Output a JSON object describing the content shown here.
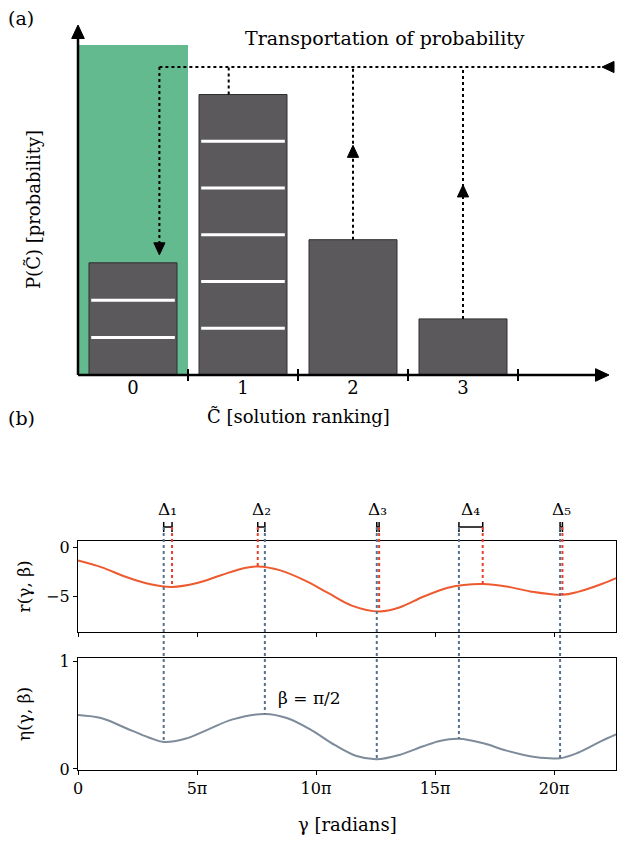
{
  "chart_data": [
    {
      "type": "bar",
      "panel": "(a)",
      "categories": [
        "0",
        "1",
        "2",
        "3"
      ],
      "values": [
        0.34,
        0.85,
        0.41,
        0.17
      ],
      "pieces": [
        3,
        6,
        1,
        1
      ],
      "color": "#5b595c",
      "ylim": [
        0,
        1
      ],
      "yticks": [],
      "tick_labels": "x",
      "grid": false,
      "xlabel": "C̃ [solution ranking]",
      "ylabel": "P(C̃) [probability]",
      "annotation": "Transportation of probability"
    },
    {
      "type": "line",
      "panel": "(b)",
      "x": [
        0,
        3.14,
        6.28,
        9.42,
        12.41,
        15.71,
        18.85,
        21.99,
        23.72,
        26.7,
        29.85,
        32.99,
        36.13,
        39.74,
        42.41,
        45.55,
        48.69,
        50.89,
        53.41,
        56.55,
        59.69,
        63.93,
        65.97,
        69.12,
        71.0
      ],
      "values": [
        -1.3,
        -2.0,
        -2.95,
        -3.7,
        -4.0,
        -3.6,
        -2.8,
        -2.05,
        -1.9,
        -2.3,
        -3.3,
        -4.6,
        -5.9,
        -6.5,
        -6.1,
        -5.0,
        -4.1,
        -3.8,
        -3.7,
        -3.95,
        -4.45,
        -4.8,
        -4.5,
        -3.7,
        -3.1
      ],
      "color": "#ee5a30",
      "line_style": "solid",
      "xlim": [
        0,
        71.0
      ],
      "xticks": [
        0,
        {
          "value": 15.708,
          "label": "5π"
        },
        {
          "value": 31.416,
          "label": "10π"
        },
        {
          "value": 47.124,
          "label": "15π"
        },
        {
          "value": 62.832,
          "label": "20π"
        }
      ],
      "ylim": [
        -8.6,
        0.7
      ],
      "yticks": [
        {
          "value": -5,
          "label": "−5"
        },
        0
      ],
      "tick_labels": "y",
      "grid": false,
      "ylabel": "r(γ, β)",
      "deltas": [
        {
          "label": "Δ₁",
          "eta_x": 11.31,
          "r_x": 12.41
        },
        {
          "label": "Δ₂",
          "eta_x": 24.66,
          "r_x": 23.72
        },
        {
          "label": "Δ₃",
          "eta_x": 39.43,
          "r_x": 39.74
        },
        {
          "label": "Δ₄",
          "eta_x": 50.27,
          "r_x": 53.41
        },
        {
          "label": "Δ₅",
          "eta_x": 63.62,
          "r_x": 63.93
        }
      ]
    },
    {
      "type": "line",
      "x": [
        0,
        3.14,
        6.28,
        9.42,
        11.31,
        14.14,
        17.28,
        20.42,
        24.66,
        27.65,
        30.79,
        33.93,
        36.76,
        39.43,
        42.41,
        45.55,
        47.75,
        50.27,
        53.41,
        56.55,
        60.32,
        63.62,
        65.97,
        69.12,
        71.0
      ],
      "values": [
        0.5,
        0.47,
        0.38,
        0.29,
        0.25,
        0.28,
        0.37,
        0.46,
        0.51,
        0.47,
        0.36,
        0.22,
        0.12,
        0.09,
        0.13,
        0.21,
        0.26,
        0.28,
        0.24,
        0.17,
        0.11,
        0.1,
        0.15,
        0.26,
        0.32
      ],
      "color": "#7d8b9b",
      "line_style": "solid",
      "xlim": [
        0,
        71.0
      ],
      "xticks": [
        0,
        {
          "value": 15.708,
          "label": "5π"
        },
        {
          "value": 31.416,
          "label": "10π"
        },
        {
          "value": 47.124,
          "label": "15π"
        },
        {
          "value": 62.832,
          "label": "20π"
        }
      ],
      "ylim": [
        -0.01,
        1.03
      ],
      "yticks": [
        0,
        1
      ],
      "grid": false,
      "xlabel": "γ [radians]",
      "ylabel": "η(γ, β)",
      "annotations": [
        {
          "text": "β = π/2",
          "x": 26.1,
          "y": 0.66
        }
      ]
    }
  ]
}
